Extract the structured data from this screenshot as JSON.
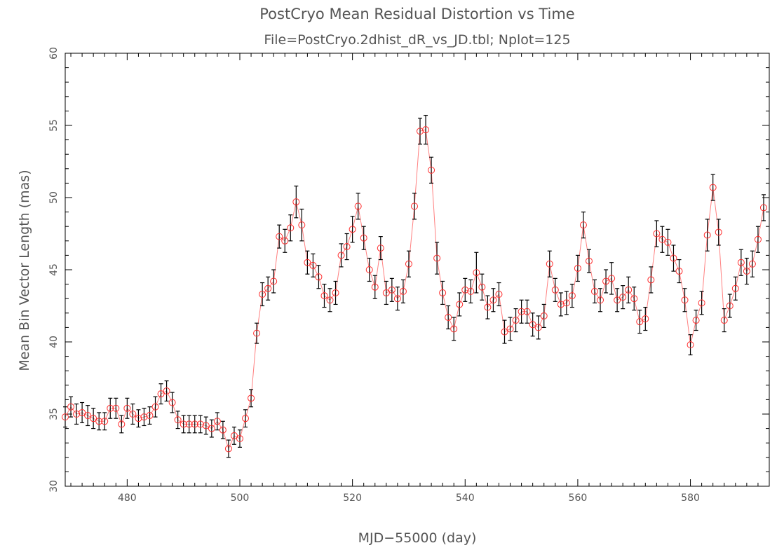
{
  "chart_data": {
    "type": "scatter",
    "title": "PostCryo Mean Residual Distortion vs Time",
    "subtitle": "File=PostCryo.2dhist_dR_vs_JD.tbl; Nplot=125",
    "xlabel": "MJD−55000 (day)",
    "ylabel": "Mean Bin Vector Length (mas)",
    "xlim": [
      469,
      594
    ],
    "ylim": [
      30,
      60
    ],
    "xticks": [
      480,
      500,
      520,
      540,
      560,
      580
    ],
    "yticks": [
      30,
      35,
      40,
      45,
      50,
      55,
      60
    ],
    "grid": false,
    "colors": {
      "points": "#ff2a2a",
      "line": "#ff8080",
      "errorbars": "#000000",
      "axes": "#000000",
      "text": "#555555"
    },
    "x": [
      469,
      470,
      471,
      472,
      473,
      474,
      475,
      476,
      477,
      478,
      479,
      480,
      481,
      482,
      483,
      484,
      485,
      486,
      487,
      488,
      489,
      490,
      491,
      492,
      493,
      494,
      495,
      496,
      497,
      498,
      499,
      500,
      501,
      502,
      503,
      504,
      505,
      506,
      507,
      508,
      509,
      510,
      511,
      512,
      513,
      514,
      515,
      516,
      517,
      518,
      519,
      520,
      521,
      522,
      523,
      524,
      525,
      526,
      527,
      528,
      529,
      530,
      531,
      532,
      533,
      534,
      535,
      536,
      537,
      538,
      539,
      540,
      541,
      542,
      543,
      544,
      545,
      546,
      547,
      548,
      549,
      550,
      551,
      552,
      553,
      554,
      555,
      556,
      557,
      558,
      559,
      560,
      561,
      562,
      563,
      564,
      565,
      566,
      567,
      568,
      569,
      570,
      571,
      572,
      573,
      574,
      575,
      576,
      577,
      578,
      579,
      580,
      581,
      582,
      583,
      584,
      585,
      586,
      587,
      588,
      589,
      590,
      591,
      592,
      593
    ],
    "y": [
      34.8,
      35.5,
      35.0,
      35.1,
      34.9,
      34.7,
      34.5,
      34.5,
      35.4,
      35.4,
      34.3,
      35.4,
      35.0,
      34.7,
      34.8,
      34.9,
      35.5,
      36.4,
      36.6,
      35.8,
      34.6,
      34.3,
      34.3,
      34.3,
      34.3,
      34.2,
      34.0,
      34.5,
      33.9,
      32.6,
      33.5,
      33.3,
      34.7,
      36.1,
      40.6,
      43.3,
      43.7,
      44.2,
      47.3,
      47.0,
      47.9,
      49.7,
      48.1,
      45.5,
      45.3,
      44.5,
      43.2,
      42.9,
      43.4,
      46.0,
      46.6,
      47.8,
      49.4,
      47.2,
      45.0,
      43.8,
      46.5,
      43.4,
      43.6,
      43.0,
      43.5,
      45.4,
      49.4,
      54.6,
      54.7,
      51.9,
      45.8,
      43.4,
      41.7,
      40.9,
      42.6,
      43.6,
      43.5,
      44.8,
      43.8,
      42.4,
      42.9,
      43.3,
      40.7,
      40.9,
      41.5,
      42.1,
      42.1,
      41.2,
      41.0,
      41.8,
      45.4,
      43.6,
      42.6,
      42.7,
      43.2,
      45.1,
      48.1,
      45.6,
      43.5,
      42.9,
      44.2,
      44.4,
      42.9,
      43.1,
      43.6,
      43.0,
      41.4,
      41.6,
      44.3,
      47.5,
      47.1,
      46.9,
      45.8,
      44.9,
      42.9,
      39.8,
      41.5,
      42.7,
      47.4,
      50.7,
      47.6,
      41.5,
      42.5,
      43.7,
      45.5,
      44.9,
      45.4,
      47.1,
      49.3
    ],
    "yerr": [
      0.7,
      0.7,
      0.7,
      0.7,
      0.7,
      0.7,
      0.6,
      0.6,
      0.7,
      0.7,
      0.6,
      0.7,
      0.7,
      0.6,
      0.6,
      0.6,
      0.7,
      0.7,
      0.7,
      0.7,
      0.6,
      0.6,
      0.6,
      0.6,
      0.6,
      0.6,
      0.6,
      0.6,
      0.6,
      0.6,
      0.6,
      0.6,
      0.6,
      0.6,
      0.7,
      0.8,
      0.8,
      0.8,
      0.8,
      0.8,
      0.9,
      1.1,
      1.1,
      0.8,
      0.8,
      0.8,
      0.8,
      0.8,
      0.8,
      0.8,
      0.9,
      0.9,
      0.9,
      0.8,
      0.8,
      0.8,
      0.8,
      0.8,
      0.8,
      0.8,
      0.8,
      0.9,
      0.9,
      0.9,
      1.0,
      0.9,
      1.1,
      0.8,
      0.8,
      0.8,
      0.8,
      0.8,
      0.8,
      1.4,
      0.9,
      0.8,
      0.8,
      0.8,
      0.8,
      0.8,
      0.8,
      0.8,
      0.8,
      0.8,
      0.8,
      0.8,
      0.9,
      0.8,
      0.8,
      0.8,
      0.8,
      0.9,
      0.9,
      0.8,
      0.8,
      0.8,
      0.8,
      1.1,
      0.8,
      0.8,
      0.9,
      0.8,
      0.8,
      0.8,
      0.9,
      0.9,
      0.9,
      0.9,
      0.9,
      0.8,
      0.8,
      0.7,
      0.7,
      0.8,
      1.1,
      0.9,
      0.9,
      0.8,
      0.8,
      0.8,
      0.9,
      0.9,
      0.9,
      0.9,
      0.9
    ]
  }
}
